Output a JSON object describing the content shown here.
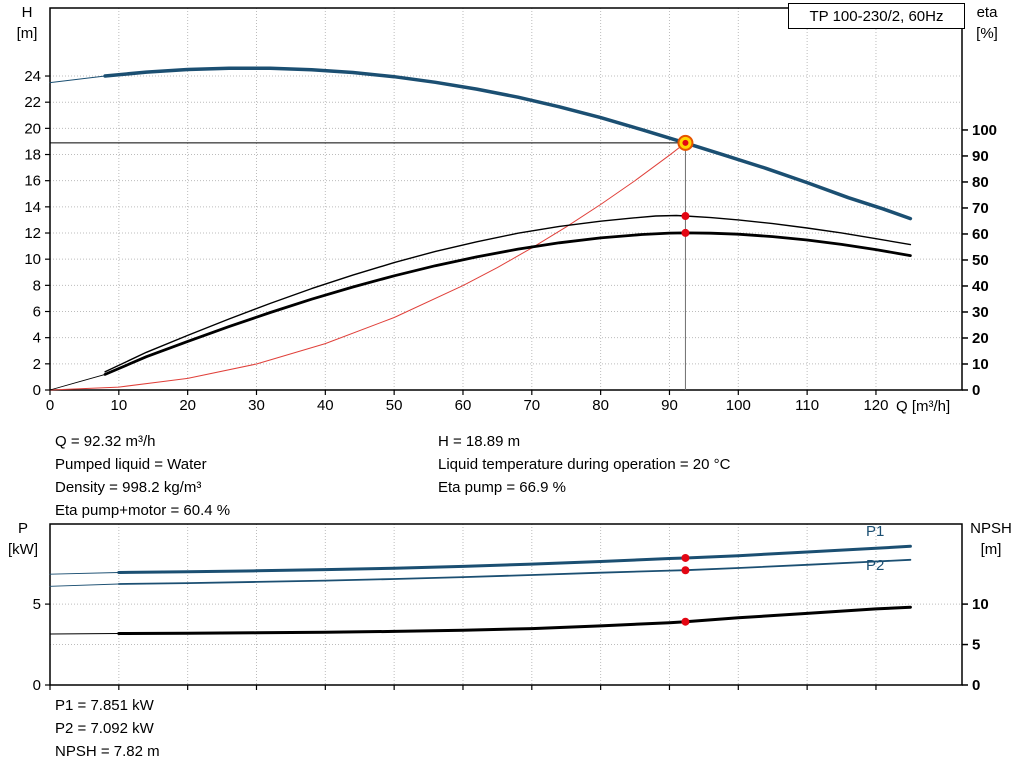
{
  "title_box": {
    "label": "TP 100-230/2, 60Hz"
  },
  "colors": {
    "blue": "#1b4f72",
    "black": "#000000",
    "red": "#e30613",
    "system_red": "#e0403a",
    "grid": "#bcbcbc",
    "duty_fill": "#ffd500",
    "duty_ring": "#e65300",
    "crosshair_v": "#6f6f6f",
    "crosshair_h": "#000000"
  },
  "info_top": {
    "left": [
      "Q = 92.32 m³/h",
      "Pumped liquid = Water",
      "Density = 998.2 kg/m³",
      "Eta pump+motor = 60.4 %"
    ],
    "right": [
      "H = 18.89 m",
      "Liquid temperature during operation = 20 °C",
      "Eta pump = 66.9 %"
    ]
  },
  "info_bottom": [
    "P1 = 7.851 kW",
    "P2 = 7.092 kW",
    "NPSH = 7.82 m"
  ],
  "duty_point": {
    "Q_m3h": 92.32,
    "H_m": 18.89,
    "eta_pump_pct": 66.9,
    "eta_pump_motor_pct": 60.4,
    "P1_kW": 7.851,
    "P2_kW": 7.092,
    "NPSH_m": 7.82
  },
  "chart_data": [
    {
      "name": "performance",
      "type": "line",
      "title": "TP 100-230/2, 60Hz",
      "x_axis": {
        "label": "Q [m³/h]",
        "min": 0,
        "max": 132.5,
        "ticks": [
          0,
          10,
          20,
          30,
          40,
          50,
          60,
          70,
          80,
          90,
          100,
          110,
          120
        ]
      },
      "y_left": {
        "name": "H",
        "unit": "[m]",
        "min": 0,
        "max": 29.2,
        "ticks": [
          0,
          2,
          4,
          6,
          8,
          10,
          12,
          14,
          16,
          18,
          20,
          22,
          24
        ]
      },
      "y_right": {
        "name": "eta",
        "unit": "[%]",
        "min": 0,
        "max": 146.9,
        "ticks": [
          0,
          10,
          20,
          30,
          40,
          50,
          60,
          70,
          80,
          90,
          100
        ]
      },
      "grid_y_axis": "left",
      "crosshair": {
        "q": 92.32,
        "h": 18.89
      },
      "series": [
        {
          "key": "head-lead",
          "axis": "left",
          "color": "blue",
          "width": 1,
          "points": [
            [
              0,
              23.5
            ],
            [
              8,
              24.0
            ]
          ]
        },
        {
          "key": "head",
          "label": "H",
          "axis": "left",
          "color": "blue",
          "width": 3.5,
          "points": [
            [
              8,
              24.0
            ],
            [
              14,
              24.3
            ],
            [
              20,
              24.5
            ],
            [
              26,
              24.6
            ],
            [
              32,
              24.6
            ],
            [
              38,
              24.48
            ],
            [
              44,
              24.27
            ],
            [
              50,
              23.95
            ],
            [
              56,
              23.52
            ],
            [
              62,
              23.0
            ],
            [
              68,
              22.38
            ],
            [
              74,
              21.65
            ],
            [
              80,
              20.82
            ],
            [
              86,
              19.9
            ],
            [
              92.32,
              18.89
            ],
            [
              98,
              17.95
            ],
            [
              104,
              16.95
            ],
            [
              110,
              15.85
            ],
            [
              116,
              14.7
            ],
            [
              121,
              13.85
            ],
            [
              125,
              13.1
            ]
          ]
        },
        {
          "key": "system-curve",
          "axis": "left",
          "color": "system_red",
          "width": 1,
          "points": [
            [
              0,
              0
            ],
            [
              10,
              0.22
            ],
            [
              20,
              0.89
            ],
            [
              30,
              1.99
            ],
            [
              40,
              3.55
            ],
            [
              50,
              5.54
            ],
            [
              60,
              7.98
            ],
            [
              65,
              9.36
            ],
            [
              70,
              10.86
            ],
            [
              75,
              12.47
            ],
            [
              80,
              14.18
            ],
            [
              85,
              16.01
            ],
            [
              90,
              17.95
            ],
            [
              92.32,
              18.89
            ]
          ]
        },
        {
          "key": "eta-lead",
          "axis": "right",
          "color": "black",
          "width": 0.9,
          "points": [
            [
              0,
              0
            ],
            [
              8,
              6
            ]
          ]
        },
        {
          "key": "eta-pump",
          "label": "eta pump",
          "axis": "right",
          "color": "black",
          "width": 1.4,
          "points": [
            [
              8,
              7
            ],
            [
              14,
              14.5
            ],
            [
              20,
              21
            ],
            [
              26,
              27.3
            ],
            [
              32,
              33.3
            ],
            [
              38,
              39.0
            ],
            [
              44,
              44.2
            ],
            [
              50,
              49.0
            ],
            [
              56,
              53.3
            ],
            [
              62,
              57.0
            ],
            [
              68,
              60.3
            ],
            [
              74,
              62.9
            ],
            [
              80,
              64.9
            ],
            [
              84,
              66.0
            ],
            [
              88,
              66.9
            ],
            [
              91,
              67.1
            ],
            [
              92.32,
              66.9
            ],
            [
              96,
              66.3
            ],
            [
              100,
              65.4
            ],
            [
              105,
              64.0
            ],
            [
              110,
              62.3
            ],
            [
              115,
              60.4
            ],
            [
              120,
              58.2
            ],
            [
              125,
              55.9
            ]
          ]
        },
        {
          "key": "eta-pump-motor",
          "label": "eta pump+motor",
          "axis": "right",
          "color": "black",
          "width": 2.8,
          "points": [
            [
              8,
              6
            ],
            [
              14,
              12.8
            ],
            [
              20,
              18.7
            ],
            [
              26,
              24.4
            ],
            [
              32,
              29.8
            ],
            [
              38,
              34.9
            ],
            [
              44,
              39.6
            ],
            [
              50,
              43.9
            ],
            [
              56,
              47.8
            ],
            [
              62,
              51.2
            ],
            [
              68,
              54.2
            ],
            [
              74,
              56.6
            ],
            [
              80,
              58.5
            ],
            [
              86,
              59.8
            ],
            [
              90,
              60.35
            ],
            [
              92.32,
              60.4
            ],
            [
              96,
              60.3
            ],
            [
              100,
              59.9
            ],
            [
              105,
              59.0
            ],
            [
              110,
              57.7
            ],
            [
              115,
              56.0
            ],
            [
              120,
              54.0
            ],
            [
              125,
              51.7
            ]
          ]
        }
      ],
      "markers": [
        {
          "key": "duty-point",
          "style": "duty",
          "axis": "left",
          "q": 92.32,
          "value": 18.89
        },
        {
          "key": "eta-pump-point",
          "style": "dot",
          "axis": "right",
          "q": 92.32,
          "value": 66.9
        },
        {
          "key": "eta-pump-motor-point",
          "style": "dot",
          "axis": "right",
          "q": 92.32,
          "value": 60.4
        }
      ]
    },
    {
      "name": "power-npsh",
      "type": "line",
      "x_axis": {
        "label": "",
        "min": 0,
        "max": 132.5,
        "ticks": [
          0,
          10,
          20,
          30,
          40,
          50,
          60,
          70,
          80,
          90,
          100,
          110,
          120
        ]
      },
      "y_left": {
        "name": "P",
        "unit": "[kW]",
        "min": 0,
        "max": 9.95,
        "ticks": [
          0,
          5
        ]
      },
      "y_right": {
        "name": "NPSH",
        "unit": "[m]",
        "min": 0,
        "max": 19.9,
        "ticks": [
          0,
          5,
          10
        ]
      },
      "grid_y_axis": "right",
      "crosshair": null,
      "series": [
        {
          "key": "p1-lead",
          "axis": "left",
          "color": "blue",
          "width": 0.9,
          "points": [
            [
              0,
              6.85
            ],
            [
              10,
              6.95
            ]
          ]
        },
        {
          "key": "p1",
          "label": "P1",
          "axis": "left",
          "color": "blue",
          "width": 3,
          "points": [
            [
              10,
              6.95
            ],
            [
              20,
              7.0
            ],
            [
              30,
              7.06
            ],
            [
              40,
              7.13
            ],
            [
              50,
              7.22
            ],
            [
              60,
              7.33
            ],
            [
              70,
              7.47
            ],
            [
              80,
              7.63
            ],
            [
              90,
              7.82
            ],
            [
              92.32,
              7.851
            ],
            [
              100,
              7.99
            ],
            [
              110,
              8.22
            ],
            [
              120,
              8.45
            ],
            [
              125,
              8.57
            ]
          ]
        },
        {
          "key": "p2-lead",
          "axis": "left",
          "color": "blue",
          "width": 0.9,
          "points": [
            [
              0,
              6.1
            ],
            [
              10,
              6.24
            ]
          ]
        },
        {
          "key": "p2",
          "label": "P2",
          "axis": "left",
          "color": "blue",
          "width": 1.8,
          "points": [
            [
              10,
              6.24
            ],
            [
              20,
              6.3
            ],
            [
              30,
              6.37
            ],
            [
              40,
              6.45
            ],
            [
              50,
              6.55
            ],
            [
              60,
              6.67
            ],
            [
              70,
              6.8
            ],
            [
              80,
              6.94
            ],
            [
              90,
              7.07
            ],
            [
              92.32,
              7.092
            ],
            [
              100,
              7.23
            ],
            [
              110,
              7.43
            ],
            [
              120,
              7.63
            ],
            [
              125,
              7.74
            ]
          ]
        },
        {
          "key": "npsh-lead",
          "axis": "right",
          "color": "black",
          "width": 0.9,
          "points": [
            [
              0,
              6.3
            ],
            [
              10,
              6.37
            ]
          ]
        },
        {
          "key": "npsh",
          "label": "NPSH",
          "axis": "right",
          "color": "black",
          "width": 3,
          "points": [
            [
              10,
              6.37
            ],
            [
              20,
              6.4
            ],
            [
              30,
              6.45
            ],
            [
              40,
              6.52
            ],
            [
              50,
              6.62
            ],
            [
              60,
              6.77
            ],
            [
              70,
              6.97
            ],
            [
              80,
              7.3
            ],
            [
              90,
              7.7
            ],
            [
              92.32,
              7.82
            ],
            [
              100,
              8.3
            ],
            [
              110,
              8.85
            ],
            [
              120,
              9.4
            ],
            [
              125,
              9.62
            ]
          ]
        }
      ],
      "markers": [
        {
          "key": "p1-point",
          "style": "dot",
          "axis": "left",
          "q": 92.32,
          "value": 7.851
        },
        {
          "key": "p2-point",
          "style": "dot",
          "axis": "left",
          "q": 92.32,
          "value": 7.092
        },
        {
          "key": "npsh-point",
          "style": "dot",
          "axis": "right",
          "q": 92.32,
          "value": 7.82
        }
      ]
    }
  ]
}
